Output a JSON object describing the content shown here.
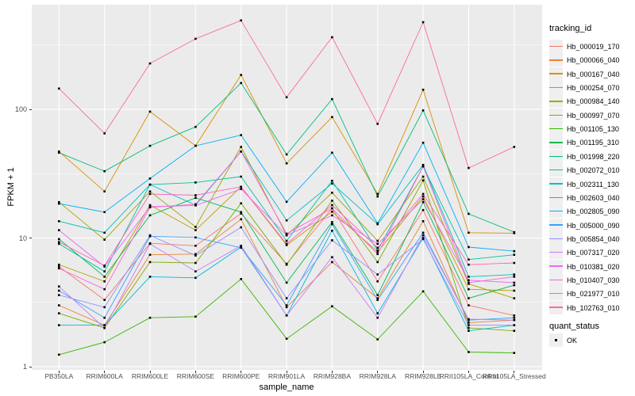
{
  "figure": {
    "colors": {
      "panel_bg": "#EBEBEB",
      "grid": "#FFFFFF",
      "tick_text": "#4D4D4D",
      "axis_title": "#000000",
      "legend_key_bg": "#EFEFEF",
      "marker": "#000000"
    }
  },
  "axes": {
    "x": {
      "title": "sample_name"
    },
    "y": {
      "title": "FPKM + 1",
      "ticks": [
        {
          "label": "1",
          "value": 1
        },
        {
          "label": "10",
          "value": 10
        },
        {
          "label": "100",
          "value": 100
        }
      ],
      "minor": [
        3.1623,
        31.623,
        316.23
      ]
    }
  },
  "legend": {
    "tracking_title": "tracking_id",
    "quant_title": "quant_status",
    "quant_items": [
      {
        "label": "OK"
      }
    ]
  },
  "chart_data": {
    "type": "line",
    "title": "",
    "xlabel": "sample_name",
    "ylabel": "FPKM + 1",
    "y_scale": "log10",
    "ylim": [
      0.95,
      650
    ],
    "grid": true,
    "legend_position": "right",
    "marker": "small-black-square",
    "quant_status": "OK",
    "categories": [
      "PB350LA",
      "RRIM600LA",
      "RRIM600LE",
      "RRIM600SE",
      "RRIM600PE",
      "RRIM901LA",
      "RRIM928BA",
      "RRIM928LA",
      "RRIM928LE",
      "RRII105LA_Control",
      "RRII105LA_Stressed"
    ],
    "series": [
      {
        "name": "Hb_000019_170",
        "color": "#F8766D",
        "values": [
          6.0,
          3.3,
          9.1,
          8.7,
          15.5,
          6.3,
          17,
          4.6,
          16.5,
          3.0,
          2.5
        ]
      },
      {
        "name": "Hb_000066_040",
        "color": "#EA8331",
        "values": [
          3.0,
          2.1,
          7.4,
          7.5,
          14,
          2.9,
          6.5,
          3.4,
          13.5,
          2.2,
          2.3
        ]
      },
      {
        "name": "Hb_000167_040",
        "color": "#D89000",
        "values": [
          47,
          23,
          96,
          52,
          185,
          38,
          87,
          22,
          142,
          11,
          10.9
        ]
      },
      {
        "name": "Hb_000254_070",
        "color": "#C09B00",
        "values": [
          6.2,
          4.6,
          18,
          11.5,
          25,
          8.8,
          16,
          7.8,
          21,
          4.0,
          3.9
        ]
      },
      {
        "name": "Hb_000984_140",
        "color": "#A3A500",
        "values": [
          19,
          9.7,
          23,
          12.2,
          51,
          10.5,
          22.5,
          9.5,
          30,
          4.4,
          3.4
        ]
      },
      {
        "name": "Hb_000997_070",
        "color": "#7CAE00",
        "values": [
          2.6,
          2.0,
          6.5,
          6.4,
          18.6,
          6.2,
          19.5,
          6.5,
          28,
          2.0,
          1.9
        ]
      },
      {
        "name": "Hb_001105_130",
        "color": "#39B600",
        "values": [
          1.24,
          1.55,
          2.4,
          2.45,
          4.8,
          1.65,
          2.95,
          1.63,
          3.85,
          1.3,
          1.28
        ]
      },
      {
        "name": "Hb_001195_310",
        "color": "#00BB4E",
        "values": [
          9.8,
          5.0,
          15,
          20.5,
          15.9,
          4.5,
          13.3,
          3.6,
          19,
          3.4,
          4.3
        ]
      },
      {
        "name": "Hb_001998_220",
        "color": "#00BF7D",
        "values": [
          46,
          33,
          52,
          73,
          160,
          44.6,
          120,
          21,
          98,
          15.4,
          11.1
        ]
      },
      {
        "name": "Hb_002072_010",
        "color": "#00C1A3",
        "values": [
          9.0,
          5.5,
          26,
          27,
          30,
          9.5,
          27.8,
          8.0,
          36,
          6.8,
          7.4
        ]
      },
      {
        "name": "Hb_002311_130",
        "color": "#00BFC4",
        "values": [
          13.5,
          11,
          26,
          18,
          47,
          13.7,
          26.5,
          12.8,
          37,
          5.0,
          5.2
        ]
      },
      {
        "name": "Hb_002603_040",
        "color": "#00BAE0",
        "values": [
          2.1,
          2.1,
          5.0,
          4.9,
          8.5,
          2.5,
          11.4,
          2.6,
          10,
          1.9,
          2.1
        ]
      },
      {
        "name": "Hb_002805_090",
        "color": "#00B0F6",
        "values": [
          18.5,
          15.9,
          29,
          52,
          63,
          19.1,
          46,
          13,
          55,
          8.5,
          7.9
        ]
      },
      {
        "name": "Hb_005000_090",
        "color": "#35A2FF",
        "values": [
          3.9,
          2.4,
          10.3,
          10.1,
          8.4,
          3.0,
          12.8,
          3.3,
          11,
          2.3,
          2.4
        ]
      },
      {
        "name": "Hb_005854_040",
        "color": "#9590FF",
        "values": [
          3.6,
          2.9,
          10.5,
          7.3,
          12.1,
          3.4,
          9.6,
          5.2,
          9.8,
          2.1,
          2.1
        ]
      },
      {
        "name": "Hb_007317_020",
        "color": "#C77CFF",
        "values": [
          4.2,
          2.0,
          9.0,
          5.5,
          8.7,
          2.5,
          7.1,
          2.4,
          10.5,
          2.34,
          2.3
        ]
      },
      {
        "name": "Hb_010381_020",
        "color": "#E76BF3",
        "values": [
          11.5,
          6.0,
          17.5,
          17.9,
          24,
          10.5,
          15,
          9.0,
          20,
          4.7,
          4.5
        ]
      },
      {
        "name": "Hb_010407_030",
        "color": "#FA62DB",
        "values": [
          5.8,
          4.0,
          17.3,
          18.3,
          47,
          10.8,
          17,
          7.5,
          36,
          4.5,
          5.0
        ]
      },
      {
        "name": "Hb_021977_010",
        "color": "#FF62BC",
        "values": [
          9.3,
          6.1,
          22,
          21.5,
          25,
          9.0,
          18,
          8.4,
          22,
          6.2,
          6.4
        ]
      },
      {
        "name": "Hb_102763_010",
        "color": "#FF6A98",
        "values": [
          145,
          65,
          227,
          353,
          490,
          124,
          363,
          77,
          475,
          35,
          51
        ]
      }
    ]
  }
}
